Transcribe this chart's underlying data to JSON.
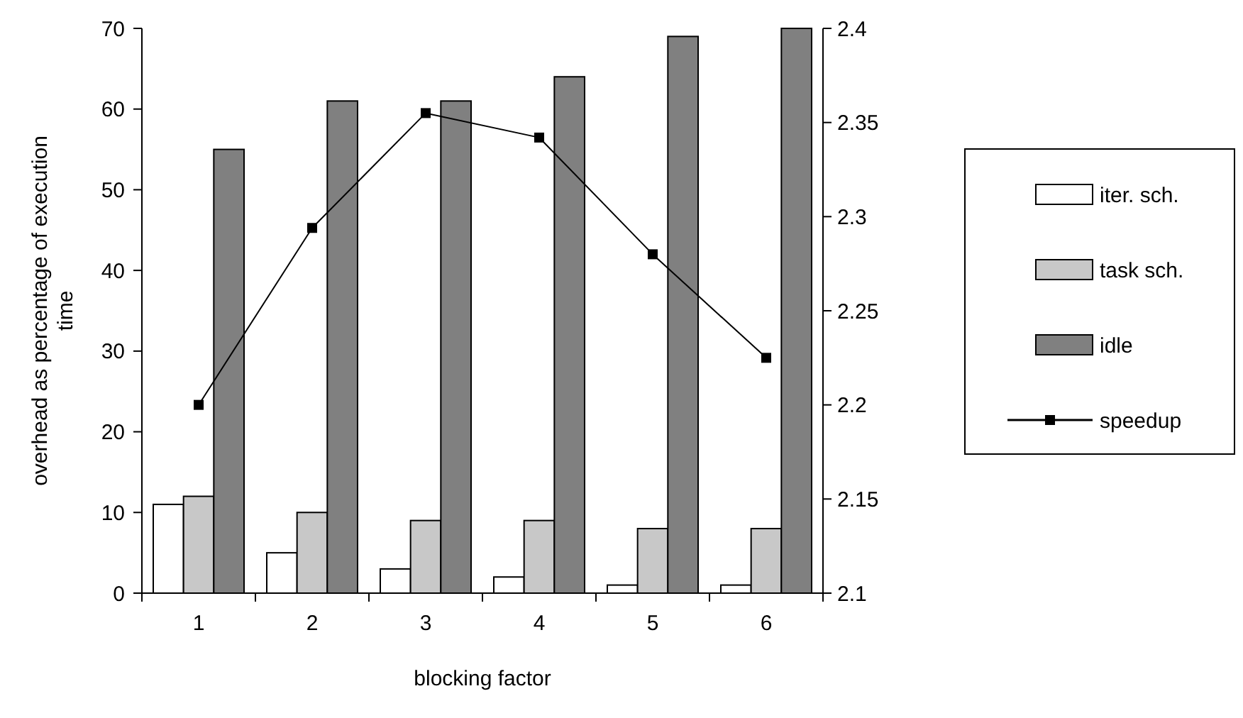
{
  "chart_data": {
    "type": "bar",
    "xlabel": "blocking factor",
    "ylabel": "overhead as percentage of execution time",
    "categories": [
      "1",
      "2",
      "3",
      "4",
      "5",
      "6"
    ],
    "series": [
      {
        "name": "iter. sch.",
        "color": "#ffffff",
        "values": [
          11,
          5,
          3,
          2,
          1,
          1
        ]
      },
      {
        "name": "task sch.",
        "color": "#c8c8c8",
        "values": [
          12,
          10,
          9,
          9,
          8,
          8
        ]
      },
      {
        "name": "idle",
        "color": "#808080",
        "values": [
          55,
          61,
          61,
          64,
          69,
          70
        ]
      },
      {
        "name": "speedup",
        "type": "line",
        "axis": "y2",
        "color": "#000000",
        "marker": "square",
        "values": [
          2.2,
          2.294,
          2.355,
          2.342,
          2.28,
          2.225
        ]
      }
    ],
    "ylim": [
      0,
      70
    ],
    "yticks": [
      0,
      10,
      20,
      30,
      40,
      50,
      60,
      70
    ],
    "y2lim": [
      2.1,
      2.4
    ],
    "y2ticks": [
      2.1,
      2.15,
      2.2,
      2.25,
      2.3,
      2.35,
      2.4
    ],
    "grid": false,
    "legend": "right"
  }
}
